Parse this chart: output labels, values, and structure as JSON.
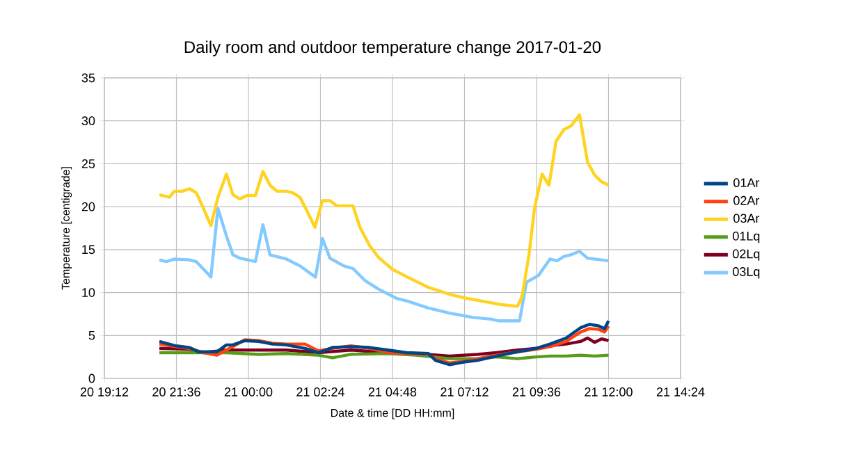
{
  "chart_data": {
    "type": "line",
    "title": "Daily room and outdoor temperature change 2017-01-20",
    "xlabel": "Date & time [DD HH:mm]",
    "ylabel": "Temperature [centigrade]",
    "xlim": [
      "2017-01-20T19:12",
      "2017-01-21T14:24"
    ],
    "ylim": [
      0,
      35
    ],
    "xticks": [
      {
        "value": "2017-01-20T19:12",
        "label": "20 19:12"
      },
      {
        "value": "2017-01-20T21:36",
        "label": "20 21:36"
      },
      {
        "value": "2017-01-21T00:00",
        "label": "21 00:00"
      },
      {
        "value": "2017-01-21T02:24",
        "label": "21 02:24"
      },
      {
        "value": "2017-01-21T04:48",
        "label": "21 04:48"
      },
      {
        "value": "2017-01-21T07:12",
        "label": "21 07:12"
      },
      {
        "value": "2017-01-21T09:36",
        "label": "21 09:36"
      },
      {
        "value": "2017-01-21T12:00",
        "label": "21 12:00"
      },
      {
        "value": "2017-01-21T14:24",
        "label": "21 14:24"
      }
    ],
    "yticks": [
      0,
      5,
      10,
      15,
      20,
      25,
      30,
      35
    ],
    "grid": true,
    "legend": "right",
    "marker": "none",
    "line_style": "solid",
    "series": [
      {
        "name": "01Ar",
        "color": "#004586",
        "x": [
          "2017-01-20T21:02",
          "2017-01-20T21:34",
          "2017-01-20T22:02",
          "2017-01-20T22:20",
          "2017-01-20T22:57",
          "2017-01-20T23:16",
          "2017-01-20T23:29",
          "2017-01-20T23:53",
          "2017-01-21T00:20",
          "2017-01-21T00:48",
          "2017-01-21T01:16",
          "2017-01-21T01:53",
          "2017-01-21T02:20",
          "2017-01-21T02:48",
          "2017-01-21T03:25",
          "2017-01-21T04:02",
          "2017-01-21T04:39",
          "2017-01-21T05:16",
          "2017-01-21T06:00",
          "2017-01-21T06:14",
          "2017-01-21T06:42",
          "2017-01-21T07:10",
          "2017-01-21T07:38",
          "2017-01-21T08:16",
          "2017-01-21T08:58",
          "2017-01-21T09:35",
          "2017-01-21T10:03",
          "2017-01-21T10:35",
          "2017-01-21T11:04",
          "2017-01-21T11:22",
          "2017-01-21T11:41",
          "2017-01-21T11:52",
          "2017-01-21T12:00"
        ],
        "values": [
          4.3,
          3.8,
          3.6,
          3.1,
          3.1,
          3.9,
          3.9,
          4.4,
          4.3,
          4.0,
          3.9,
          3.5,
          3.0,
          3.6,
          3.7,
          3.6,
          3.3,
          3.0,
          2.9,
          2.1,
          1.6,
          1.9,
          2.1,
          2.6,
          3.1,
          3.5,
          4.0,
          4.7,
          5.9,
          6.3,
          6.1,
          5.8,
          6.7
        ]
      },
      {
        "name": "02Ar",
        "color": "#ff420e",
        "x": [
          "2017-01-20T21:02",
          "2017-01-20T21:34",
          "2017-01-20T22:02",
          "2017-01-20T22:30",
          "2017-01-20T22:57",
          "2017-01-20T23:16",
          "2017-01-20T23:53",
          "2017-01-21T00:20",
          "2017-01-21T00:48",
          "2017-01-21T01:16",
          "2017-01-21T01:53",
          "2017-01-21T02:20",
          "2017-01-21T02:48",
          "2017-01-21T03:25",
          "2017-01-21T04:02",
          "2017-01-21T04:39",
          "2017-01-21T05:16",
          "2017-01-21T06:00",
          "2017-01-21T06:14",
          "2017-01-21T06:42",
          "2017-01-21T07:10",
          "2017-01-21T07:38",
          "2017-01-21T08:16",
          "2017-01-21T08:58",
          "2017-01-21T09:35",
          "2017-01-21T10:03",
          "2017-01-21T10:35",
          "2017-01-21T11:04",
          "2017-01-21T11:22",
          "2017-01-21T11:41",
          "2017-01-21T11:52",
          "2017-01-21T12:00"
        ],
        "values": [
          4.0,
          3.7,
          3.5,
          3.0,
          2.7,
          3.3,
          4.5,
          4.4,
          4.1,
          4.0,
          4.0,
          3.2,
          3.5,
          3.8,
          3.5,
          3.0,
          2.9,
          2.8,
          2.3,
          1.8,
          2.0,
          2.3,
          2.7,
          3.1,
          3.4,
          3.7,
          4.3,
          5.4,
          5.8,
          5.7,
          5.4,
          6.1
        ]
      },
      {
        "name": "03Ar",
        "color": "#ffd320",
        "x": [
          "2017-01-20T21:02",
          "2017-01-20T21:22",
          "2017-01-20T21:32",
          "2017-01-20T21:48",
          "2017-01-20T22:02",
          "2017-01-20T22:16",
          "2017-01-20T22:30",
          "2017-01-20T22:45",
          "2017-01-20T22:59",
          "2017-01-20T23:16",
          "2017-01-20T23:29",
          "2017-01-20T23:43",
          "2017-01-20T23:57",
          "2017-01-21T00:14",
          "2017-01-21T00:29",
          "2017-01-21T00:43",
          "2017-01-21T00:57",
          "2017-01-21T01:16",
          "2017-01-21T01:29",
          "2017-01-21T01:43",
          "2017-01-21T01:57",
          "2017-01-21T02:13",
          "2017-01-21T02:28",
          "2017-01-21T02:43",
          "2017-01-21T02:57",
          "2017-01-21T03:29",
          "2017-01-21T03:43",
          "2017-01-21T04:02",
          "2017-01-21T04:20",
          "2017-01-21T04:48",
          "2017-01-21T05:18",
          "2017-01-21T06:00",
          "2017-01-21T06:42",
          "2017-01-21T07:10",
          "2017-01-21T07:47",
          "2017-01-21T08:25",
          "2017-01-21T08:58",
          "2017-01-21T09:07",
          "2017-01-21T09:21",
          "2017-01-21T09:32",
          "2017-01-21T09:47",
          "2017-01-21T10:01",
          "2017-01-21T10:15",
          "2017-01-21T10:31",
          "2017-01-21T10:45",
          "2017-01-21T11:02",
          "2017-01-21T11:18",
          "2017-01-21T11:32",
          "2017-01-21T11:46",
          "2017-01-21T12:00"
        ],
        "values": [
          21.4,
          21.1,
          21.8,
          21.8,
          22.1,
          21.6,
          19.8,
          17.8,
          21.1,
          23.8,
          21.4,
          20.9,
          21.3,
          21.3,
          24.1,
          22.5,
          21.8,
          21.8,
          21.6,
          21.1,
          19.5,
          17.6,
          20.7,
          20.7,
          20.1,
          20.1,
          17.6,
          15.5,
          14.1,
          12.7,
          11.8,
          10.6,
          9.8,
          9.4,
          9.0,
          8.6,
          8.4,
          9.5,
          14.4,
          19.8,
          23.8,
          22.5,
          27.6,
          29.0,
          29.4,
          30.7,
          25.2,
          23.7,
          22.9,
          22.5
        ]
      },
      {
        "name": "01Lq",
        "color": "#579d1c",
        "x": [
          "2017-01-20T21:02",
          "2017-01-20T22:02",
          "2017-01-20T23:16",
          "2017-01-21T00:20",
          "2017-01-21T01:16",
          "2017-01-21T02:20",
          "2017-01-21T02:48",
          "2017-01-21T03:25",
          "2017-01-21T04:39",
          "2017-01-21T05:36",
          "2017-01-21T06:42",
          "2017-01-21T07:38",
          "2017-01-21T08:16",
          "2017-01-21T08:58",
          "2017-01-21T09:35",
          "2017-01-21T10:03",
          "2017-01-21T10:35",
          "2017-01-21T11:04",
          "2017-01-21T11:32",
          "2017-01-21T12:00"
        ],
        "values": [
          3.0,
          3.0,
          3.0,
          2.8,
          2.9,
          2.7,
          2.4,
          2.8,
          2.9,
          2.7,
          2.3,
          2.3,
          2.5,
          2.3,
          2.5,
          2.6,
          2.6,
          2.7,
          2.6,
          2.7
        ]
      },
      {
        "name": "02Lq",
        "color": "#7e0021",
        "x": [
          "2017-01-20T21:02",
          "2017-01-20T22:02",
          "2017-01-20T22:30",
          "2017-01-20T23:16",
          "2017-01-21T00:20",
          "2017-01-21T01:16",
          "2017-01-21T02:20",
          "2017-01-21T03:25",
          "2017-01-21T04:39",
          "2017-01-21T05:36",
          "2017-01-21T06:42",
          "2017-01-21T07:38",
          "2017-01-21T08:16",
          "2017-01-21T08:58",
          "2017-01-21T09:35",
          "2017-01-21T10:03",
          "2017-01-21T10:35",
          "2017-01-21T11:04",
          "2017-01-21T11:18",
          "2017-01-21T11:32",
          "2017-01-21T11:46",
          "2017-01-21T12:00"
        ],
        "values": [
          3.5,
          3.4,
          3.0,
          3.3,
          3.3,
          3.3,
          3.0,
          3.3,
          3.0,
          2.9,
          2.6,
          2.8,
          3.0,
          3.3,
          3.5,
          3.8,
          4.0,
          4.3,
          4.7,
          4.2,
          4.6,
          4.4
        ]
      },
      {
        "name": "03Lq",
        "color": "#83caff",
        "x": [
          "2017-01-20T21:02",
          "2017-01-20T21:16",
          "2017-01-20T21:32",
          "2017-01-20T22:02",
          "2017-01-20T22:16",
          "2017-01-20T22:45",
          "2017-01-20T22:59",
          "2017-01-20T23:16",
          "2017-01-20T23:29",
          "2017-01-20T23:43",
          "2017-01-21T00:14",
          "2017-01-21T00:29",
          "2017-01-21T00:43",
          "2017-01-21T01:16",
          "2017-01-21T01:43",
          "2017-01-21T02:14",
          "2017-01-21T02:28",
          "2017-01-21T02:43",
          "2017-01-21T03:11",
          "2017-01-21T03:29",
          "2017-01-21T03:53",
          "2017-01-21T04:20",
          "2017-01-21T04:57",
          "2017-01-21T05:18",
          "2017-01-21T06:00",
          "2017-01-21T06:42",
          "2017-01-21T07:29",
          "2017-01-21T08:06",
          "2017-01-21T08:20",
          "2017-01-21T09:02",
          "2017-01-21T09:16",
          "2017-01-21T09:40",
          "2017-01-21T10:03",
          "2017-01-21T10:17",
          "2017-01-21T10:31",
          "2017-01-21T10:45",
          "2017-01-21T11:02",
          "2017-01-21T11:18",
          "2017-01-21T11:46",
          "2017-01-21T12:00"
        ],
        "values": [
          13.8,
          13.6,
          13.9,
          13.8,
          13.6,
          11.8,
          19.8,
          16.6,
          14.4,
          14.0,
          13.6,
          17.9,
          14.4,
          13.9,
          13.1,
          11.8,
          16.3,
          14.0,
          13.1,
          12.8,
          11.4,
          10.4,
          9.3,
          9.0,
          8.2,
          7.6,
          7.1,
          6.9,
          6.7,
          6.7,
          11.2,
          12.0,
          13.9,
          13.7,
          14.2,
          14.4,
          14.8,
          14.0,
          13.8,
          13.7
        ]
      }
    ]
  }
}
